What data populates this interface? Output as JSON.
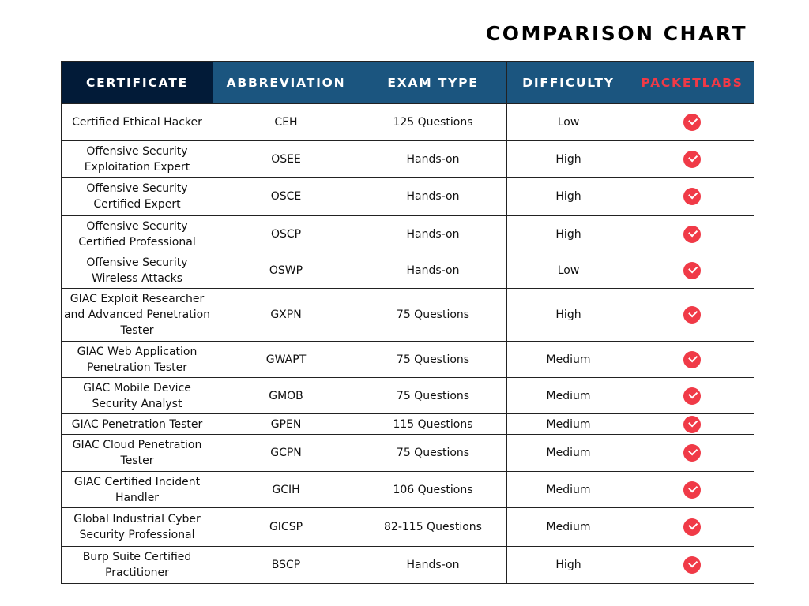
{
  "title": "COMPARISON CHART",
  "columns": [
    "CERTIFICATE",
    "ABBREVIATION",
    "EXAM TYPE",
    "DIFFICULTY",
    "PACKETLABS"
  ],
  "colors": {
    "header_dark": "#021b38",
    "header_blue": "#1b557f",
    "accent_red": "#f03a47"
  },
  "rows": [
    {
      "certificate": "Certified Ethical Hacker",
      "abbr": "CEH",
      "exam": "125 Questions",
      "difficulty": "Low",
      "packetlabs": "check-icon"
    },
    {
      "certificate": "Offensive Security Exploitation Expert",
      "abbr": "OSEE",
      "exam": "Hands-on",
      "difficulty": "High",
      "packetlabs": "check-icon"
    },
    {
      "certificate": "Offensive Security Certified Expert",
      "abbr": "OSCE",
      "exam": "Hands-on",
      "difficulty": "High",
      "packetlabs": "check-icon"
    },
    {
      "certificate": "Offensive Security Certified Professional",
      "abbr": "OSCP",
      "exam": "Hands-on",
      "difficulty": "High",
      "packetlabs": "check-icon"
    },
    {
      "certificate": "Offensive Security Wireless Attacks",
      "abbr": "OSWP",
      "exam": "Hands-on",
      "difficulty": "Low",
      "packetlabs": "check-icon"
    },
    {
      "certificate": "GIAC Exploit Researcher and Advanced Penetration Tester",
      "abbr": "GXPN",
      "exam": "75 Questions",
      "difficulty": "High",
      "packetlabs": "check-icon"
    },
    {
      "certificate": "GIAC Web Application Penetration Tester",
      "abbr": "GWAPT",
      "exam": "75 Questions",
      "difficulty": "Medium",
      "packetlabs": "check-icon"
    },
    {
      "certificate": "GIAC Mobile Device Security Analyst",
      "abbr": "GMOB",
      "exam": "75 Questions",
      "difficulty": "Medium",
      "packetlabs": "check-icon"
    },
    {
      "certificate": "GIAC Penetration Tester",
      "abbr": "GPEN",
      "exam": "115 Questions",
      "difficulty": "Medium",
      "packetlabs": "check-icon"
    },
    {
      "certificate": "GIAC Cloud Penetration Tester",
      "abbr": "GCPN",
      "exam": "75 Questions",
      "difficulty": "Medium",
      "packetlabs": "check-icon"
    },
    {
      "certificate": "GIAC Certified Incident Handler",
      "abbr": "GCIH",
      "exam": "106 Questions",
      "difficulty": "Medium",
      "packetlabs": "check-icon"
    },
    {
      "certificate": "Global Industrial Cyber Security Professional",
      "abbr": "GICSP",
      "exam": "82-115 Questions",
      "difficulty": "Medium",
      "packetlabs": "check-icon"
    },
    {
      "certificate": "Burp Suite Certified Practitioner",
      "abbr": "BSCP",
      "exam": "Hands-on",
      "difficulty": "High",
      "packetlabs": "check-icon"
    }
  ]
}
